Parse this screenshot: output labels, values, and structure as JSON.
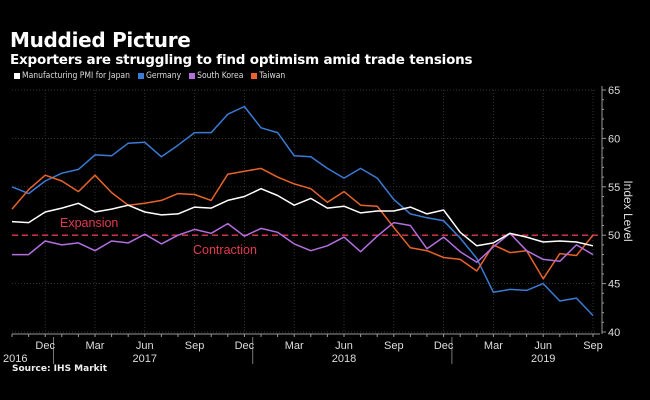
{
  "header": {
    "title": "Muddied Picture",
    "subtitle": "Exporters are struggling to find optimism amid trade tensions"
  },
  "source": "Source: IHS Markit",
  "chart_data": {
    "type": "line",
    "title": "Muddied Picture",
    "subtitle": "Exporters are struggling to find optimism amid trade tensions",
    "xlabel": "",
    "ylabel": "Index Level",
    "ylim": [
      40,
      65
    ],
    "yticks": [
      40,
      45,
      50,
      55,
      60,
      65
    ],
    "grid": true,
    "legend_position": "top-left",
    "x": [
      "2016-10",
      "2016-11",
      "2016-12",
      "2017-01",
      "2017-02",
      "2017-03",
      "2017-04",
      "2017-05",
      "2017-06",
      "2017-07",
      "2017-08",
      "2017-09",
      "2017-10",
      "2017-11",
      "2017-12",
      "2018-01",
      "2018-02",
      "2018-03",
      "2018-04",
      "2018-05",
      "2018-06",
      "2018-07",
      "2018-08",
      "2018-09",
      "2018-10",
      "2018-11",
      "2018-12",
      "2019-01",
      "2019-02",
      "2019-03",
      "2019-04",
      "2019-05",
      "2019-06",
      "2019-07",
      "2019-08",
      "2019-09"
    ],
    "xtick_labels": [
      {
        "month": "Dec",
        "year": "2016",
        "at": "2016-12"
      },
      {
        "month": "Mar",
        "year": "",
        "at": "2017-03"
      },
      {
        "month": "Jun",
        "year": "2017",
        "at": "2017-06"
      },
      {
        "month": "Sep",
        "year": "",
        "at": "2017-09"
      },
      {
        "month": "Dec",
        "year": "",
        "at": "2017-12"
      },
      {
        "month": "Mar",
        "year": "",
        "at": "2018-03"
      },
      {
        "month": "Jun",
        "year": "2018",
        "at": "2018-06"
      },
      {
        "month": "Sep",
        "year": "",
        "at": "2018-09"
      },
      {
        "month": "Dec",
        "year": "",
        "at": "2018-12"
      },
      {
        "month": "Mar",
        "year": "",
        "at": "2019-03"
      },
      {
        "month": "Jun",
        "year": "2019",
        "at": "2019-06"
      },
      {
        "month": "Sep",
        "year": "",
        "at": "2019-09"
      }
    ],
    "year_separators": [
      "2017-01",
      "2018-01",
      "2019-01"
    ],
    "series": [
      {
        "name": "Manufacturing PMI for Japan",
        "color": "#ffffff",
        "values": [
          51.4,
          51.3,
          52.4,
          52.8,
          53.3,
          52.4,
          52.7,
          53.1,
          52.4,
          52.1,
          52.2,
          52.9,
          52.8,
          53.6,
          54.0,
          54.8,
          54.1,
          53.1,
          53.8,
          52.8,
          53.0,
          52.3,
          52.5,
          52.5,
          52.9,
          52.2,
          52.6,
          50.3,
          48.9,
          49.2,
          50.2,
          49.8,
          49.3,
          49.4,
          49.3,
          48.9
        ]
      },
      {
        "name": "Germany",
        "color": "#3a7bd5",
        "values": [
          55.0,
          54.3,
          55.6,
          56.4,
          56.8,
          58.3,
          58.2,
          59.5,
          59.6,
          58.1,
          59.3,
          60.6,
          60.6,
          62.5,
          63.3,
          61.1,
          60.6,
          58.2,
          58.1,
          56.9,
          55.9,
          56.9,
          55.9,
          53.7,
          52.2,
          51.8,
          51.5,
          49.7,
          47.6,
          44.1,
          44.4,
          44.3,
          45.0,
          43.2,
          43.5,
          41.7
        ]
      },
      {
        "name": "South Korea",
        "color": "#b36ee0",
        "values": [
          48.0,
          48.0,
          49.4,
          49.0,
          49.2,
          48.4,
          49.4,
          49.2,
          50.1,
          49.1,
          50.0,
          50.6,
          50.2,
          51.2,
          49.9,
          50.7,
          50.3,
          49.1,
          48.4,
          48.9,
          49.8,
          48.3,
          49.9,
          51.3,
          51.0,
          48.6,
          49.8,
          48.3,
          47.2,
          48.8,
          50.2,
          48.4,
          47.5,
          47.3,
          49.0,
          48.0
        ]
      },
      {
        "name": "Taiwan",
        "color": "#e8632b",
        "values": [
          52.7,
          54.7,
          56.2,
          55.6,
          54.5,
          56.2,
          54.4,
          53.1,
          53.3,
          53.6,
          54.3,
          54.2,
          53.6,
          56.3,
          56.6,
          56.9,
          56.0,
          55.3,
          54.8,
          53.4,
          54.5,
          53.1,
          53.0,
          50.8,
          48.7,
          48.4,
          47.7,
          47.5,
          46.3,
          49.0,
          48.2,
          48.4,
          45.5,
          48.1,
          47.9,
          50.0
        ]
      }
    ],
    "reference_line": {
      "value": 50,
      "color": "#e23a4e",
      "style": "dashed"
    },
    "annotations": [
      {
        "text": "Expansion",
        "near_value": 50,
        "side": "above",
        "at": "2017-01"
      },
      {
        "text": "Contraction",
        "near_value": 50,
        "side": "below",
        "at": "2018-01"
      }
    ]
  }
}
